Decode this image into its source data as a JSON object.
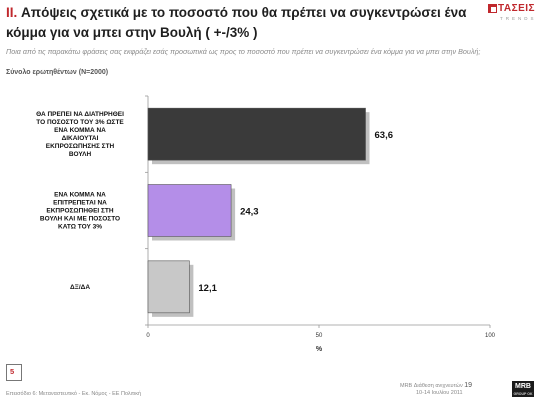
{
  "header": {
    "section_number": "II.",
    "title_line1": "Απόψεις σχετικά με το ποσοστό που θα πρέπει να συγκεντρώσει ένα",
    "title_line2": "κόμμα για να μπει στην Βουλή ( +-/3% )",
    "logo_word": "ΤΑΣΕΙΣ",
    "logo_sub": "TRENDS"
  },
  "question": "Ποια από τις παρακάτω φράσεις σας εκφράζει εσάς προσωπικά ως προς το ποσοστό που πρέπει να συγκεντρώσει ένα κόμμα για να μπει στην Βουλή;",
  "base": "Σύνολο ερωτηθέντων (N=2000)",
  "chart_data": {
    "type": "bar",
    "orientation": "horizontal",
    "categories": [
      [
        "ΘΑ ΠΡΕΠΕΙ ΝΑ ΔΙΑΤΗΡΗΘΕΙ",
        "ΤΟ ΠΟΣΟΣΤΟ ΤΟΥ 3% ΩΣΤΕ",
        "ΕΝΑ ΚΟΜΜΑ ΝΑ",
        "ΔΙΚΑΙΟΥΤΑΙ",
        "ΕΚΠΡΟΣΩΠΗΣΗΣ ΣΤΗ",
        "ΒΟΥΛΗ"
      ],
      [
        "ΕΝΑ ΚΟΜΜΑ ΝΑ",
        "ΕΠΙΤΡΕΠΕΤΑΙ ΝΑ",
        "ΕΚΠΡΟΣΩΠΗΘΕΙ ΣΤΗ",
        "ΒΟΥΛΗ ΚΑΙ ΜΕ ΠΟΣΟΣΤΟ",
        "ΚΑΤΩ ΤΟΥ 3%"
      ],
      [
        "ΔΞ/ΔΑ"
      ]
    ],
    "values": [
      63.6,
      24.3,
      12.1
    ],
    "value_labels": [
      "63,6",
      "24,3",
      "12,1"
    ],
    "colors": [
      "#3a3a3a",
      "#b48ee8",
      "#c8c8c8"
    ],
    "xlim": [
      0,
      100
    ],
    "xticks": [
      0,
      50,
      100
    ],
    "xlabel": "%",
    "grid": false,
    "legend": "none"
  },
  "footer": {
    "page_number": "5",
    "left_text": "Επεισόδιο 6: Μεταναστευτικό - Εκ. Νόμος - ΕΕ Πολιτική",
    "right_text_1": "MRB Διάθεση ανιχνευτών",
    "right_page": "19",
    "right_text_2": "10-14 Ιουλίου 2011",
    "logo_text": "MRB",
    "logo_sub": "GROUP OK"
  }
}
